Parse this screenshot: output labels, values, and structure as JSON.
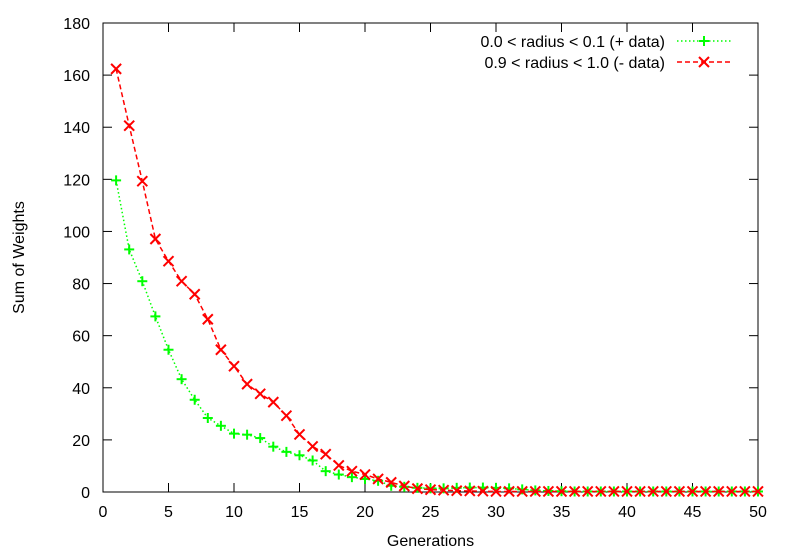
{
  "chart_data": {
    "type": "line",
    "xlabel": "Generations",
    "ylabel": "Sum of Weights",
    "xlim": [
      0,
      50
    ],
    "ylim": [
      0,
      180
    ],
    "xticks": [
      "0",
      "5",
      "10",
      "15",
      "20",
      "25",
      "30",
      "35",
      "40",
      "45",
      "50"
    ],
    "yticks": [
      "0",
      "20",
      "40",
      "60",
      "80",
      "100",
      "120",
      "140",
      "160",
      "180"
    ],
    "grid": false,
    "legend_position": "top-right",
    "x": [
      1,
      2,
      3,
      4,
      5,
      6,
      7,
      8,
      9,
      10,
      11,
      12,
      13,
      14,
      15,
      16,
      17,
      18,
      19,
      20,
      21,
      22,
      23,
      24,
      25,
      26,
      27,
      28,
      29,
      30,
      31,
      32,
      33,
      34,
      35,
      36,
      37,
      38,
      39,
      40,
      41,
      42,
      43,
      44,
      45,
      46,
      47,
      48,
      49,
      50
    ],
    "series": [
      {
        "name": "0.0 < radius < 0.1 (+ data)",
        "color": "#00ff00",
        "marker": "plus",
        "line_style": "dotted",
        "values": [
          119.6,
          93.1,
          80.9,
          67.4,
          54.6,
          43.3,
          35.4,
          28.4,
          25.4,
          22.4,
          22.0,
          20.7,
          17.4,
          15.4,
          14.1,
          12.1,
          8.0,
          6.7,
          5.7,
          5.0,
          4.3,
          2.4,
          2.0,
          1.6,
          1.4,
          1.4,
          1.6,
          1.7,
          1.7,
          1.6,
          1.4,
          1.0,
          0.6,
          0.4,
          0.3,
          0.2,
          0.2,
          0.2,
          0.2,
          0.2,
          0.2,
          0.2,
          0.2,
          0.2,
          0.2,
          0.2,
          0.2,
          0.2,
          0.2,
          0.2
        ]
      },
      {
        "name": "0.9 < radius < 1.0 (- data)",
        "color": "#ff0000",
        "marker": "cross",
        "line_style": "dashed",
        "values": [
          162.4,
          140.6,
          119.3,
          97.1,
          88.6,
          80.9,
          75.9,
          66.3,
          54.6,
          48.3,
          41.4,
          37.7,
          34.5,
          29.3,
          22.1,
          17.5,
          14.5,
          10.2,
          8.0,
          6.7,
          5.0,
          3.7,
          2.3,
          1.3,
          0.9,
          0.7,
          0.5,
          0.4,
          0.3,
          0.2,
          0.2,
          0.2,
          0.2,
          0.2,
          0.2,
          0.2,
          0.2,
          0.2,
          0.2,
          0.2,
          0.2,
          0.2,
          0.2,
          0.2,
          0.2,
          0.2,
          0.2,
          0.2,
          0.2,
          0.2
        ]
      }
    ]
  }
}
